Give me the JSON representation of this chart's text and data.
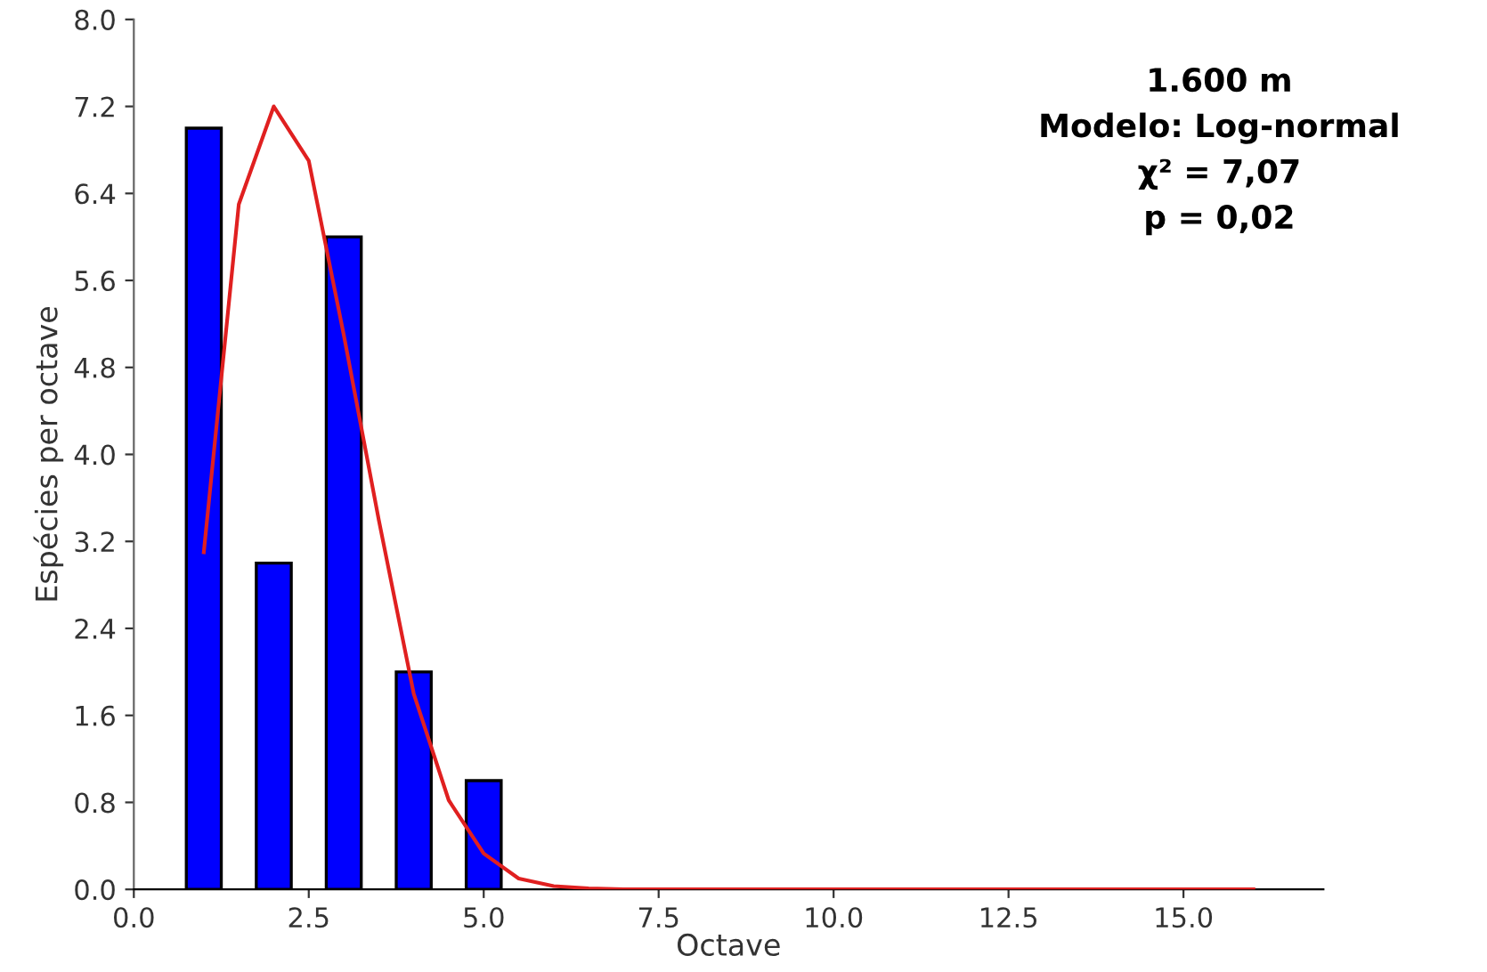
{
  "chart_data": {
    "type": "bar",
    "xlabel": "Octave",
    "ylabel": "Espécies per octave",
    "annotations": [
      "1.600 m",
      "Modelo: Log-normal",
      "χ² = 7,07",
      "p = 0,02"
    ],
    "series": [
      {
        "color": "#0000ff",
        "x": [
          1,
          2,
          3,
          4,
          5
        ],
        "values": [
          7,
          3,
          6,
          2,
          1
        ]
      },
      {
        "type": "line",
        "color": "#e02020",
        "x": [
          1,
          1.5,
          2,
          2.5,
          3,
          3.5,
          4,
          4.5,
          5,
          5.5,
          6,
          6.5,
          7,
          8,
          9,
          10,
          11,
          12,
          13,
          14,
          15,
          16
        ],
        "values": [
          3.1,
          6.3,
          7.2,
          6.7,
          5.1,
          3.4,
          1.8,
          0.82,
          0.33,
          0.1,
          0.03,
          0.01,
          0,
          0,
          0,
          0,
          0,
          0,
          0,
          0,
          0,
          0
        ]
      }
    ],
    "xlim": [
      0,
      17
    ],
    "ylim": [
      0,
      8
    ],
    "xticks": [
      {
        "value": 0,
        "label": "0.0"
      },
      {
        "value": 2.5,
        "label": "2.5"
      },
      {
        "value": 5,
        "label": "5.0"
      },
      {
        "value": 7.5,
        "label": "7.5"
      },
      {
        "value": 10,
        "label": "10.0"
      },
      {
        "value": 12.5,
        "label": "12.5"
      },
      {
        "value": 15,
        "label": "15.0"
      }
    ],
    "yticks": [
      {
        "value": 0,
        "label": "0.0"
      },
      {
        "value": 0.8,
        "label": "0.8"
      },
      {
        "value": 1.6,
        "label": "1.6"
      },
      {
        "value": 2.4,
        "label": "2.4"
      },
      {
        "value": 3.2,
        "label": "3.2"
      },
      {
        "value": 4,
        "label": "4.0"
      },
      {
        "value": 4.8,
        "label": "4.8"
      },
      {
        "value": 5.6,
        "label": "5.6"
      },
      {
        "value": 6.4,
        "label": "6.4"
      },
      {
        "value": 7.2,
        "label": "7.2"
      },
      {
        "value": 8,
        "label": "8.0"
      }
    ],
    "grid": false,
    "legend": false,
    "marker": "none",
    "line_style": "solid"
  }
}
